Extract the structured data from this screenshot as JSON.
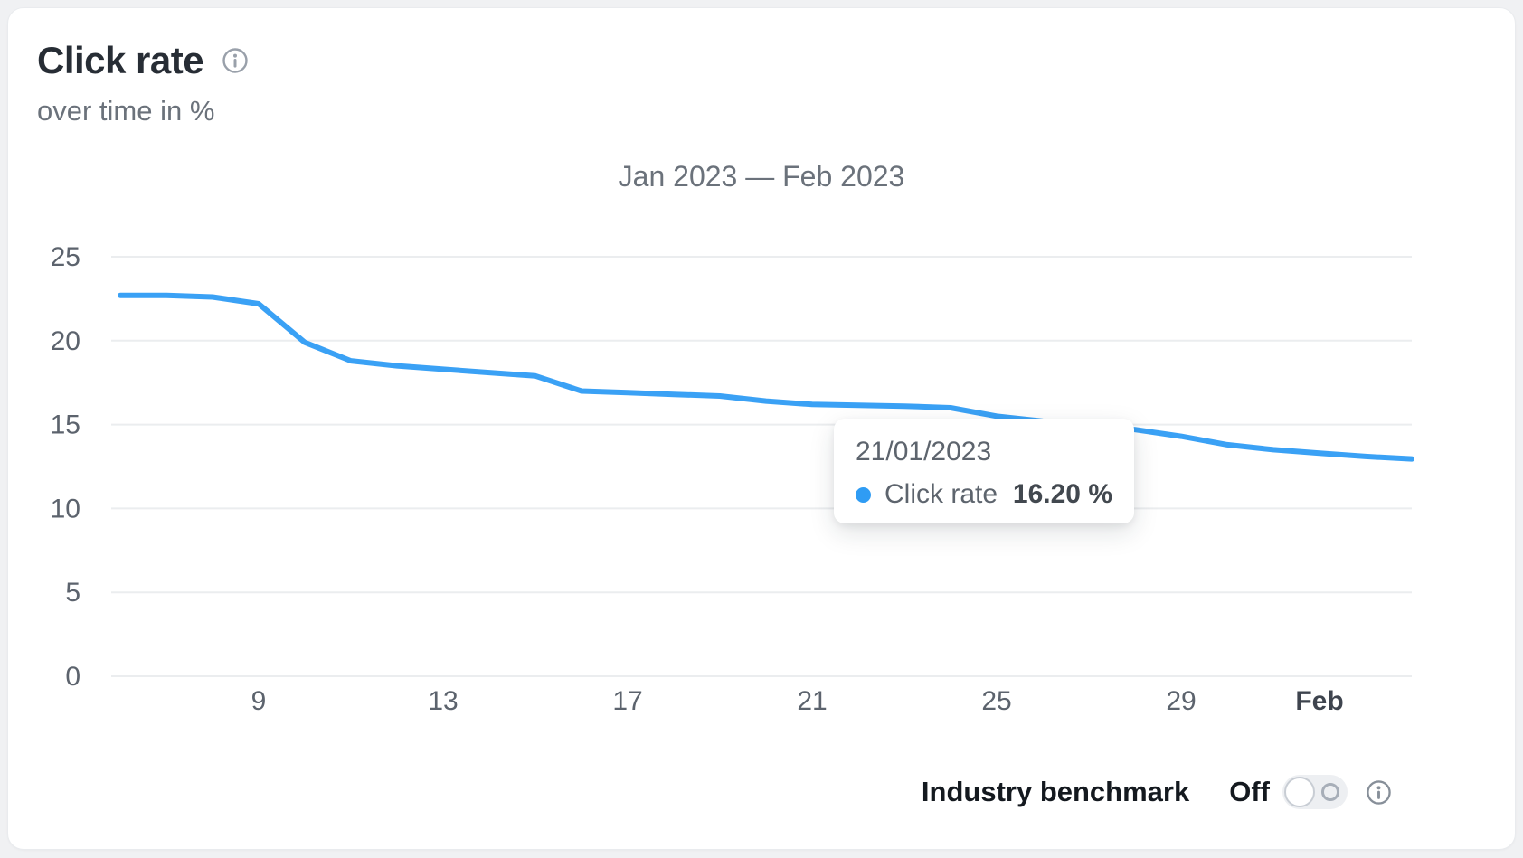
{
  "card": {
    "title": "Click rate",
    "subtitle": "over time in %"
  },
  "tooltip": {
    "date": "21/01/2023",
    "series_label": "Click rate",
    "value": "16.20 %"
  },
  "benchmark": {
    "label": "Industry benchmark",
    "state_label": "Off",
    "enabled": false
  },
  "colors": {
    "line": "#3aa1f5",
    "tooltip_dot": "#2f9cf4",
    "grid": "#ebedef",
    "axis_text": "#5c636d",
    "axis_text_strong": "#3e444e"
  },
  "chart_data": {
    "type": "line",
    "title": "Jan 2023 — Feb 2023",
    "ylabel": "Click rate over time in %",
    "ylim": [
      0,
      25
    ],
    "grid": "horizontal",
    "legend_position": "none",
    "y_ticks": [
      0,
      5,
      10,
      15,
      20,
      25
    ],
    "x_ticks": [
      {
        "label": "9",
        "day": 9
      },
      {
        "label": "13",
        "day": 13
      },
      {
        "label": "17",
        "day": 17
      },
      {
        "label": "21",
        "day": 21
      },
      {
        "label": "25",
        "day": 25
      },
      {
        "label": "29",
        "day": 29
      },
      {
        "label": "Feb",
        "day": 32,
        "bold": true
      }
    ],
    "x_range": {
      "start": "06/01/2023",
      "end": "03/02/2023"
    },
    "series": [
      {
        "name": "Click rate",
        "points": [
          {
            "date": "06/01/2023",
            "value": 22.7
          },
          {
            "date": "07/01/2023",
            "value": 22.7
          },
          {
            "date": "08/01/2023",
            "value": 22.6
          },
          {
            "date": "09/01/2023",
            "value": 22.2
          },
          {
            "date": "10/01/2023",
            "value": 19.9
          },
          {
            "date": "11/01/2023",
            "value": 18.8
          },
          {
            "date": "12/01/2023",
            "value": 18.5
          },
          {
            "date": "13/01/2023",
            "value": 18.3
          },
          {
            "date": "14/01/2023",
            "value": 18.1
          },
          {
            "date": "15/01/2023",
            "value": 17.9
          },
          {
            "date": "16/01/2023",
            "value": 17.0
          },
          {
            "date": "17/01/2023",
            "value": 16.9
          },
          {
            "date": "18/01/2023",
            "value": 16.8
          },
          {
            "date": "19/01/2023",
            "value": 16.7
          },
          {
            "date": "20/01/2023",
            "value": 16.4
          },
          {
            "date": "21/01/2023",
            "value": 16.2
          },
          {
            "date": "22/01/2023",
            "value": 16.15
          },
          {
            "date": "23/01/2023",
            "value": 16.1
          },
          {
            "date": "24/01/2023",
            "value": 16.0
          },
          {
            "date": "25/01/2023",
            "value": 15.5
          },
          {
            "date": "26/01/2023",
            "value": 15.2
          },
          {
            "date": "27/01/2023",
            "value": 15.0
          },
          {
            "date": "28/01/2023",
            "value": 14.7
          },
          {
            "date": "29/01/2023",
            "value": 14.3
          },
          {
            "date": "30/01/2023",
            "value": 13.8
          },
          {
            "date": "31/01/2023",
            "value": 13.5
          },
          {
            "date": "01/02/2023",
            "value": 13.3
          },
          {
            "date": "02/02/2023",
            "value": 13.1
          },
          {
            "date": "03/02/2023",
            "value": 12.95
          }
        ]
      }
    ]
  }
}
